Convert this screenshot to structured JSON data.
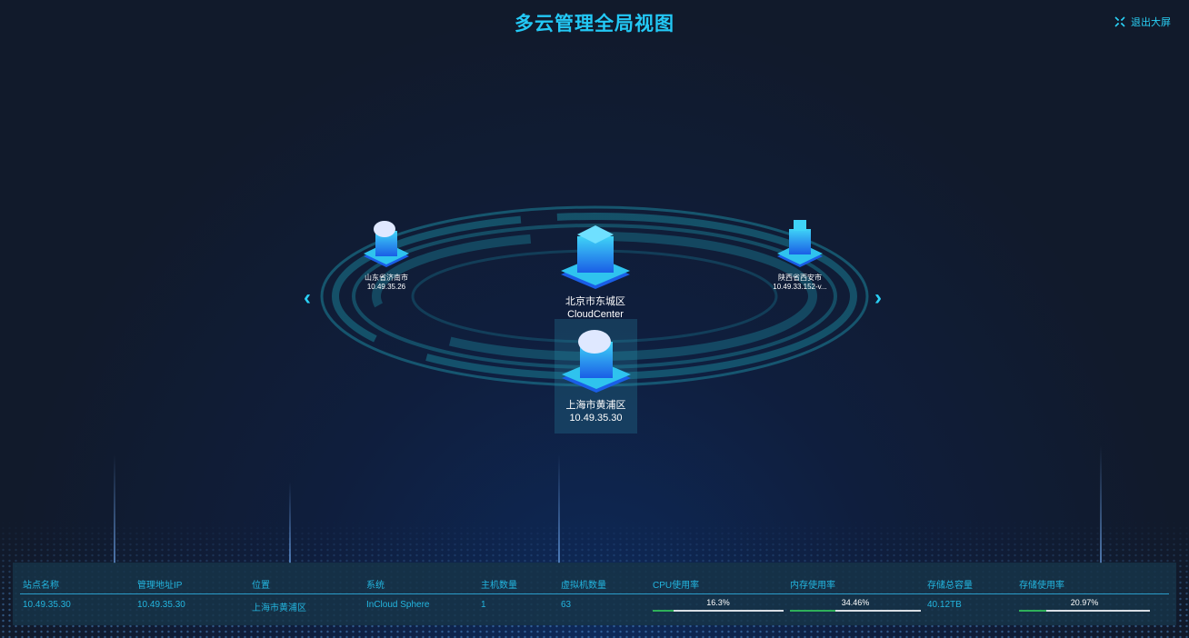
{
  "header": {
    "title": "多云管理全局视图",
    "exit_label": "退出大屏"
  },
  "nodes": [
    {
      "name": "山东省济南市",
      "ip": "10.49.35.26"
    },
    {
      "name": "北京市东城区",
      "ip": "CloudCenter"
    },
    {
      "name": "陕西省西安市",
      "ip": "10.49.33.152-v..."
    },
    {
      "name": "上海市黄浦区",
      "ip": "10.49.35.30"
    }
  ],
  "table": {
    "headers": [
      "站点名称",
      "管理地址IP",
      "位置",
      "系统",
      "主机数量",
      "虚拟机数量",
      "CPU使用率",
      "内存使用率",
      "存储总容量",
      "存储使用率"
    ],
    "row": {
      "name": "10.49.35.30",
      "ip": "10.49.35.30",
      "location": "上海市黄浦区",
      "system": "InCloud Sphere",
      "hosts": "1",
      "vms": "63",
      "cpu": "16.3%",
      "cpu_value": 16.3,
      "mem": "34.46%",
      "mem_value": 34.46,
      "storage": "40.12TB",
      "storage_usage": "20.97%",
      "storage_value": 20.97
    }
  },
  "colors": {
    "accent": "#23c8f5",
    "bar_fill": "#2fb05a",
    "bar_track": "#d8dde3"
  }
}
